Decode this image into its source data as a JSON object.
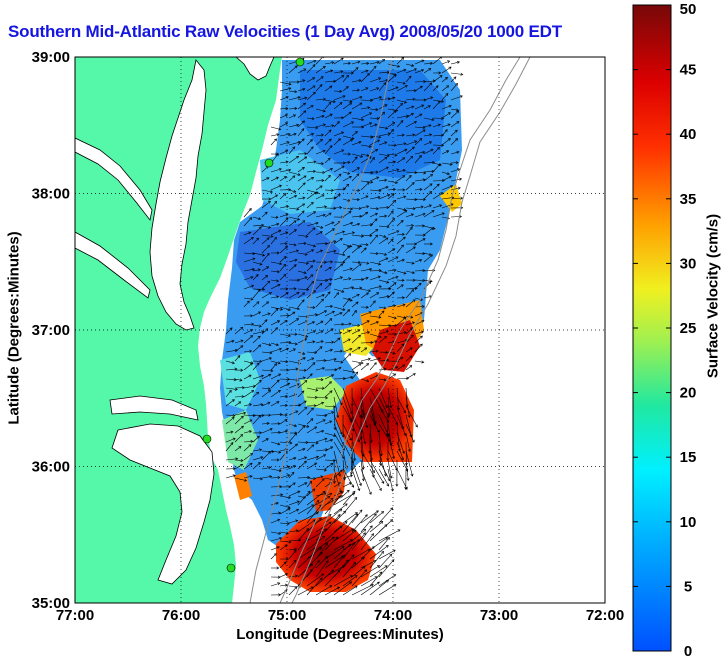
{
  "chart_data": {
    "type": "heatmap",
    "title": "Southern Mid-Atlantic Raw Velocities (1 Day Avg) 2008/05/20 1000 EDT",
    "xlabel": "Longitude (Degrees:Minutes)",
    "ylabel": "Latitude (Degrees:Minutes)",
    "x_ticks": [
      "77:00",
      "76:00",
      "75:00",
      "74:00",
      "73:00",
      "72:00"
    ],
    "x_tick_values": [
      -77,
      -76,
      -75,
      -74,
      -73,
      -72
    ],
    "y_ticks": [
      "39:00",
      "38:00",
      "37:00",
      "36:00",
      "35:00"
    ],
    "y_tick_values": [
      39,
      38,
      37,
      36,
      35
    ],
    "xlim": [
      -77,
      -72
    ],
    "ylim": [
      35,
      39
    ],
    "grid": true,
    "colorbar": {
      "label": "Surface Velocity (cm/s)",
      "min": 0,
      "max": 50,
      "ticks": [
        0,
        5,
        10,
        15,
        20,
        25,
        30,
        35,
        40,
        45,
        50
      ],
      "colormap": "jet"
    }
  },
  "colors": {
    "land": "#55f7a8",
    "water_nodata": "#ffffff",
    "title": "#1515e0",
    "coastline": "#000000",
    "bathymetry": "#8c8c8c",
    "station_marker": "#22dd22"
  }
}
